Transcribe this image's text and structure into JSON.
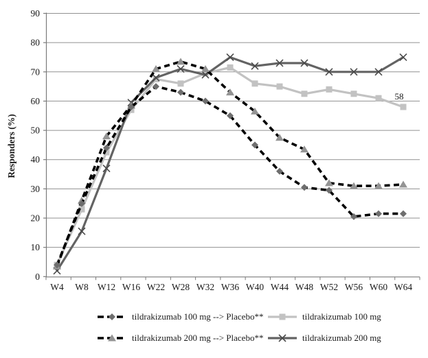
{
  "chart_data": {
    "type": "line",
    "title": "",
    "xlabel": "",
    "ylabel": "Responders (%)",
    "ylim": [
      0,
      90
    ],
    "yticks": [
      0,
      10,
      20,
      30,
      40,
      50,
      60,
      70,
      80,
      90
    ],
    "grid": true,
    "legend_position": "bottom",
    "legend_columns": 2,
    "categories": [
      "W4",
      "W8",
      "W12",
      "W16",
      "W22",
      "W28",
      "W32",
      "W36",
      "W40",
      "W44",
      "W48",
      "W52",
      "W56",
      "W60",
      "W64"
    ],
    "series": [
      {
        "name": "tildrakizumab 100 mg --> Placebo**",
        "marker": "diamond",
        "line": "dashed",
        "line_color": "#000000",
        "marker_color": "#6e6e6e",
        "values": [
          4,
          25,
          44,
          58,
          65,
          63,
          60,
          55,
          45,
          36,
          30.5,
          29.5,
          20.5,
          21.5,
          21.5
        ]
      },
      {
        "name": "tildrakizumab 100 mg",
        "marker": "square",
        "line": "solid",
        "line_color": "#c2c2c2",
        "marker_color": "#c2c2c2",
        "values": [
          4,
          23,
          42.5,
          57,
          67.5,
          66,
          69.5,
          71.5,
          66,
          65,
          62.5,
          64,
          62.5,
          61,
          58
        ]
      },
      {
        "name": "tildrakizumab 200 mg --> Placebo**",
        "marker": "triangle",
        "line": "dashed",
        "line_color": "#000000",
        "marker_color": "#949494",
        "values": [
          3.5,
          26,
          48,
          58.5,
          71,
          73.5,
          71,
          63,
          56.5,
          47.5,
          43.5,
          32,
          31,
          31,
          31.5
        ]
      },
      {
        "name": "tildrakizumab 200 mg",
        "marker": "x",
        "line": "solid",
        "line_color": "#636363",
        "marker_color": "#4a4a4a",
        "values": [
          2,
          15.5,
          37,
          59.5,
          68,
          71,
          69,
          75,
          72,
          73,
          73,
          70,
          70,
          70,
          75
        ]
      }
    ],
    "annotations": [
      {
        "text": "58",
        "series_index": 1,
        "category_index": 14
      }
    ],
    "colors": {
      "grid": "#909090",
      "axis": "#7a7a7a",
      "text": "#1a1a1a"
    }
  }
}
